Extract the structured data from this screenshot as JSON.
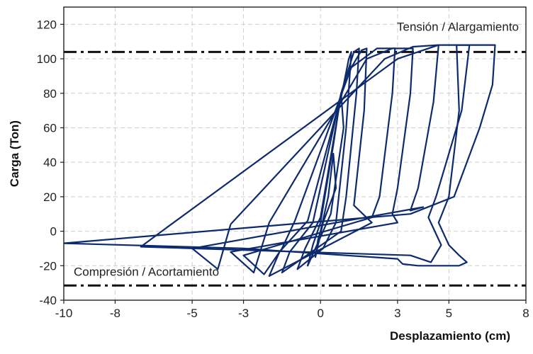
{
  "chart_data": {
    "type": "line",
    "title": "",
    "xlabel": "Desplazamiento (cm)",
    "ylabel": "Carga (Ton)",
    "xlim": [
      -10,
      8
    ],
    "ylim": [
      -40,
      130
    ],
    "x_ticks": [
      -10,
      -8,
      -5,
      -3,
      0,
      3,
      5,
      8
    ],
    "x_tick_labels": [
      "-10",
      "-8",
      "-5",
      "-3",
      "0",
      "3",
      "5",
      "8"
    ],
    "y_ticks": [
      -40,
      -20,
      0,
      20,
      40,
      60,
      80,
      100,
      120
    ],
    "y_tick_labels": [
      "-40",
      "-20",
      "0",
      "20",
      "40",
      "60",
      "80",
      "100",
      "120"
    ],
    "grid": true,
    "series_color": "#0d2a6e",
    "reference_color": "#111111",
    "reference_lines": [
      {
        "y": 104,
        "label": "Tensión / Alargamiento",
        "style": "dash-dot"
      },
      {
        "y": -31.5,
        "label": "Compresión / Acortamiento",
        "style": "dash-dot"
      }
    ],
    "series": [
      {
        "points": [
          [
            0,
            0
          ],
          [
            0.3,
            20
          ],
          [
            0.5,
            45
          ],
          [
            0.6,
            25
          ],
          [
            0.1,
            5
          ],
          [
            -0.2,
            -15
          ],
          [
            -0.1,
            -5
          ],
          [
            0,
            0
          ]
        ]
      },
      {
        "points": [
          [
            0,
            5
          ],
          [
            0.5,
            50
          ],
          [
            0.8,
            80
          ],
          [
            0.9,
            60
          ],
          [
            0.4,
            10
          ],
          [
            -0.5,
            -20
          ],
          [
            -0.3,
            -8
          ],
          [
            0,
            5
          ]
        ]
      },
      {
        "points": [
          [
            0,
            8
          ],
          [
            0.7,
            70
          ],
          [
            1.1,
            100
          ],
          [
            1.2,
            104
          ],
          [
            1.0,
            60
          ],
          [
            0.6,
            5
          ],
          [
            0.1,
            -10
          ],
          [
            -0.9,
            -22
          ],
          [
            -0.6,
            -10
          ],
          [
            0,
            8
          ]
        ]
      },
      {
        "points": [
          [
            -0.3,
            5
          ],
          [
            0.8,
            80
          ],
          [
            1.3,
            104
          ],
          [
            1.5,
            106
          ],
          [
            1.4,
            80
          ],
          [
            1.0,
            20
          ],
          [
            0.8,
            0
          ],
          [
            -1.5,
            -24
          ],
          [
            -1.2,
            -12
          ],
          [
            -0.3,
            5
          ]
        ]
      },
      {
        "points": [
          [
            -0.5,
            6
          ],
          [
            1.0,
            90
          ],
          [
            1.6,
            105
          ],
          [
            1.8,
            106
          ],
          [
            1.7,
            70
          ],
          [
            1.3,
            15
          ],
          [
            2.0,
            5
          ],
          [
            -2.0,
            -26
          ],
          [
            -1.6,
            -12
          ],
          [
            -0.5,
            6
          ]
        ]
      },
      {
        "points": [
          [
            -1.0,
            6
          ],
          [
            1.2,
            95
          ],
          [
            2.2,
            106
          ],
          [
            2.9,
            106
          ],
          [
            2.8,
            80
          ],
          [
            2.3,
            20
          ],
          [
            2.0,
            8
          ],
          [
            -3.0,
            -14
          ],
          [
            -2.2,
            -25
          ],
          [
            -1.5,
            -10
          ],
          [
            -1.0,
            6
          ]
        ]
      },
      {
        "points": [
          [
            -2.0,
            5
          ],
          [
            1.8,
            100
          ],
          [
            2.8,
            106
          ],
          [
            3.6,
            106
          ],
          [
            3.5,
            80
          ],
          [
            3.0,
            25
          ],
          [
            2.8,
            10
          ],
          [
            3.0,
            5
          ],
          [
            -3.5,
            -12
          ],
          [
            -2.6,
            -24
          ],
          [
            -2.0,
            5
          ]
        ]
      },
      {
        "points": [
          [
            -3.5,
            4
          ],
          [
            2.5,
            100
          ],
          [
            3.6,
            107
          ],
          [
            4.6,
            108
          ],
          [
            4.4,
            75
          ],
          [
            3.8,
            25
          ],
          [
            3.5,
            12
          ],
          [
            4.0,
            14
          ],
          [
            -5.0,
            -10
          ],
          [
            -4.0,
            -22
          ],
          [
            -3.5,
            4
          ]
        ]
      },
      {
        "points": [
          [
            -6.0,
            2
          ],
          [
            3.0,
            100
          ],
          [
            4.6,
            108
          ],
          [
            5.8,
            108
          ],
          [
            5.5,
            70
          ],
          [
            4.5,
            20
          ],
          [
            4.2,
            8
          ],
          [
            4.7,
            -8
          ],
          [
            4.3,
            -18
          ],
          [
            3.5,
            -14
          ],
          [
            -7.0,
            -9
          ],
          [
            -6.0,
            2
          ]
        ]
      },
      {
        "points": [
          [
            -10,
            -7
          ],
          [
            3.5,
            10
          ],
          [
            5.2,
            20
          ],
          [
            6.2,
            60
          ],
          [
            6.7,
            85
          ],
          [
            6.8,
            108
          ],
          [
            5.3,
            108
          ],
          [
            5.4,
            70
          ],
          [
            5.0,
            20
          ],
          [
            4.6,
            5
          ],
          [
            5.0,
            -8
          ],
          [
            5.4,
            -14
          ],
          [
            5.7,
            -18
          ],
          [
            5.4,
            -20
          ],
          [
            3.8,
            -20
          ],
          [
            3.2,
            -19
          ],
          [
            3.0,
            -16
          ],
          [
            -3.0,
            -10
          ],
          [
            -10,
            -7
          ]
        ]
      }
    ]
  }
}
